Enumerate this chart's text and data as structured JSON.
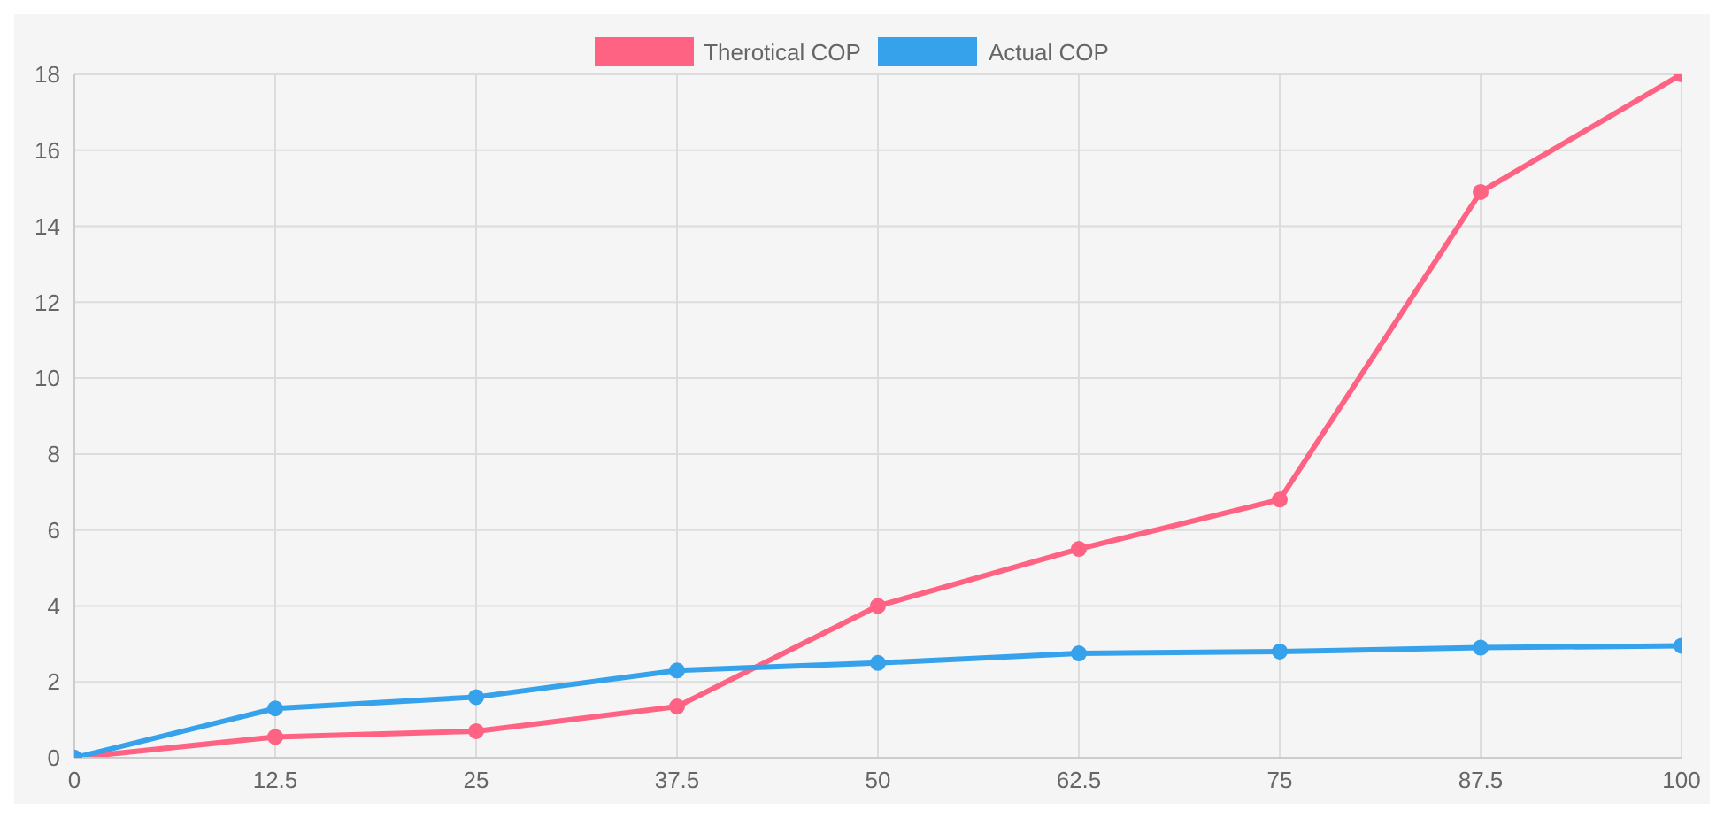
{
  "chart_data": {
    "type": "line",
    "x": [
      0,
      12.5,
      25,
      37.5,
      50,
      62.5,
      75,
      87.5,
      100
    ],
    "series": [
      {
        "name": "Therotical COP",
        "color": "#ff6384",
        "values": [
          0,
          0.55,
          0.7,
          1.35,
          4.0,
          5.5,
          6.8,
          14.9,
          18.0
        ]
      },
      {
        "name": "Actual COP",
        "color": "#36a2eb",
        "values": [
          0,
          1.3,
          1.6,
          2.3,
          2.5,
          2.75,
          2.8,
          2.9,
          2.95
        ]
      }
    ],
    "xlim": [
      0,
      100
    ],
    "xticks": [
      0,
      12.5,
      25,
      37.5,
      50,
      62.5,
      75,
      87.5,
      100
    ],
    "ylim": [
      0,
      18
    ],
    "yticks": [
      0,
      2,
      4,
      6,
      8,
      10,
      12,
      14,
      16,
      18
    ],
    "grid": true,
    "legend": "top",
    "marker": "circle",
    "line_style": "solid"
  }
}
